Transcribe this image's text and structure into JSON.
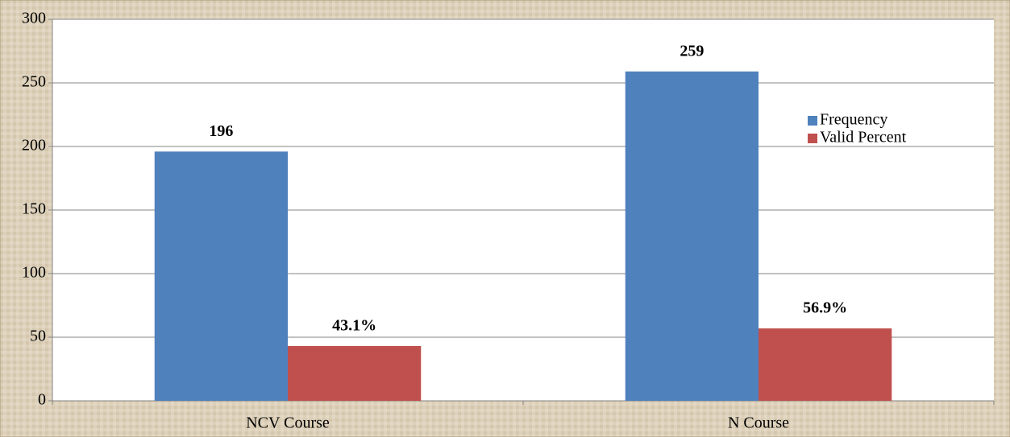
{
  "chart_data": {
    "type": "bar",
    "categories": [
      "NCV Course",
      "N Course"
    ],
    "series": [
      {
        "name": "Frequency",
        "color": "#4f81bd",
        "values": [
          196,
          259
        ]
      },
      {
        "name": "Valid Percent",
        "color": "#c0504d",
        "values": [
          43.1,
          56.9
        ],
        "value_labels": [
          "43.1%",
          "56.9%"
        ]
      }
    ],
    "ylim": [
      0,
      300
    ],
    "yticks": [
      0,
      50,
      100,
      150,
      200,
      250,
      300
    ],
    "grid": true,
    "legend": "upper right"
  }
}
